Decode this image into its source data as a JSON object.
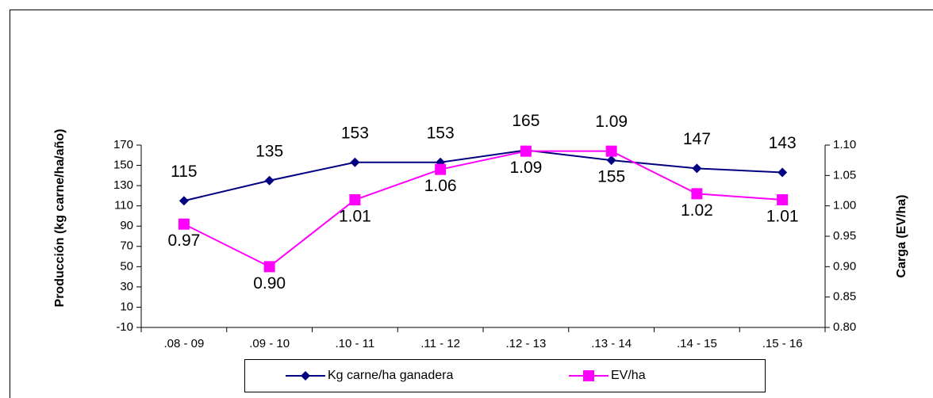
{
  "chart_data": {
    "type": "line",
    "categories": [
      ".08 - 09",
      ".09 - 10",
      ".10 - 11",
      ".11 - 12",
      ".12 - 13",
      ".13 - 14",
      ".14 - 15",
      ".15 - 16"
    ],
    "y_label": "Producción (kg carne/ha/año)",
    "y2_label": "Carga (EV/ha)",
    "ylim": [
      -10,
      170
    ],
    "yticks": [
      -10,
      10,
      30,
      50,
      70,
      90,
      110,
      130,
      150,
      170
    ],
    "y2lim": [
      0.8,
      1.1
    ],
    "y2ticks": [
      {
        "value": 0.8,
        "label": "0.80"
      },
      0.85,
      {
        "value": 0.9,
        "label": "0.90"
      },
      0.95,
      {
        "value": 1,
        "label": "1.00"
      },
      1.05,
      {
        "value": 1.1,
        "label": "1.10"
      }
    ],
    "series": [
      {
        "name": "Kg carne/ha ganadera",
        "color": "#000080",
        "marker": "diamond",
        "values": [
          115,
          135,
          153,
          153,
          165,
          155,
          147,
          143
        ]
      },
      {
        "name": "EV/ha",
        "color": "#ff00ff",
        "marker": "square",
        "axis": "y2",
        "values": [
          0.97,
          0.9,
          1.01,
          1.06,
          1.09,
          1.09,
          1.02,
          1.01
        ],
        "value_labels": [
          "0.97",
          "0.90",
          "1.01",
          "1.06",
          "1.09",
          "1.09",
          "1.02",
          "1.01"
        ]
      }
    ],
    "legend": "bottom"
  }
}
